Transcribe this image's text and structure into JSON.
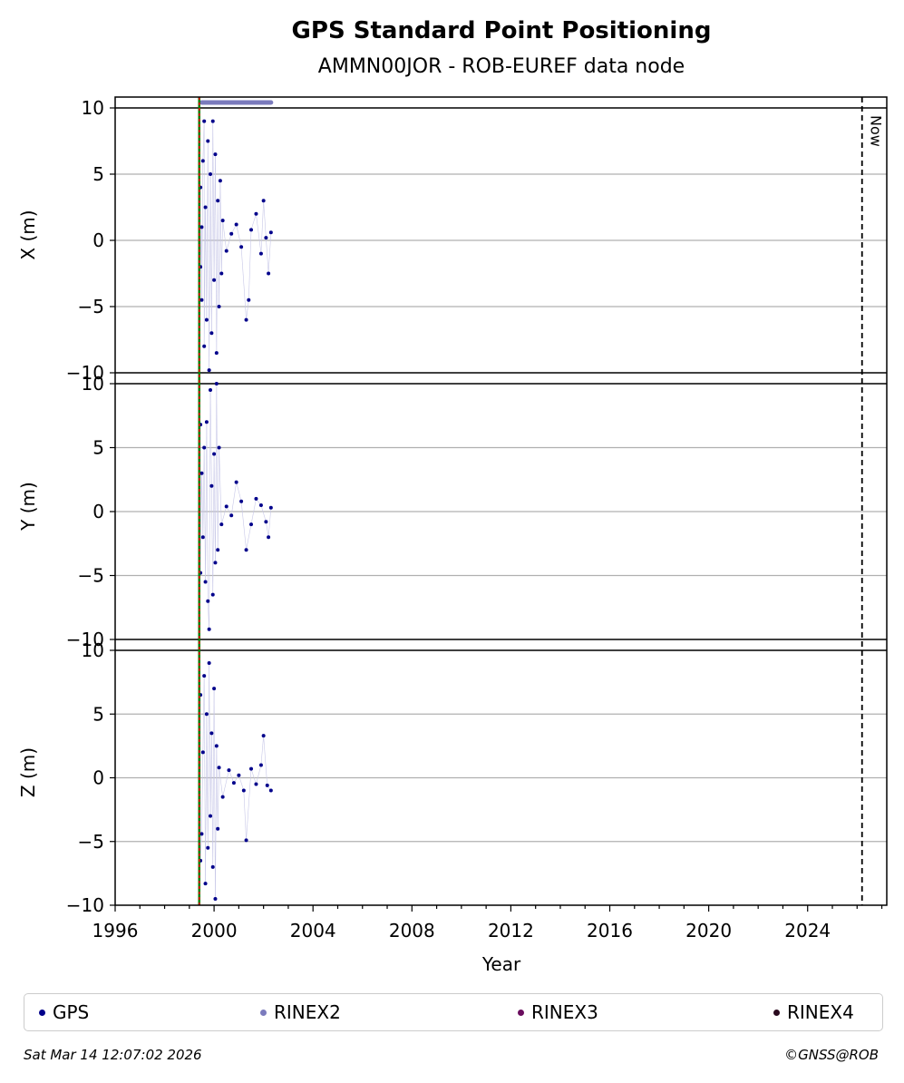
{
  "chart_data": {
    "type": "scatter",
    "title": "GPS Standard Point Positioning",
    "subtitle": "AMMN00JOR - ROB-EUREF data node",
    "xlabel": "Year",
    "xlim": [
      1996,
      2027.2
    ],
    "xticks": [
      "1996",
      "2000",
      "2004",
      "2008",
      "2012",
      "2016",
      "2020",
      "2024"
    ],
    "now_label": "Now",
    "now_x": 2026.2,
    "station_start_x": 1999.4,
    "grid": "horizontal",
    "legend_location": "bottom",
    "panels": [
      {
        "ylabel": "X (m)",
        "ylim": [
          -10,
          10
        ],
        "yticks": [
          "10",
          "5",
          "0",
          "−5",
          "−10"
        ]
      },
      {
        "ylabel": "Y (m)",
        "ylim": [
          -10,
          10
        ],
        "yticks": [
          "10",
          "5",
          "0",
          "−5",
          "−10"
        ]
      },
      {
        "ylabel": "Z (m)",
        "ylim": [
          -10,
          10
        ],
        "yticks": [
          "10",
          "5",
          "0",
          "−5",
          "−10"
        ]
      }
    ],
    "series": [
      {
        "name": "GPS",
        "color": "#00008b",
        "marker": "dot"
      },
      {
        "name": "RINEX2",
        "color": "#7b7bbd",
        "marker": "dot"
      },
      {
        "name": "RINEX3",
        "color": "#6a0d5e",
        "marker": "dot"
      },
      {
        "name": "RINEX4",
        "color": "#2a0a1e",
        "marker": "dot"
      }
    ],
    "rinex2_span": [
      1999.5,
      2002.3
    ],
    "gps_samples": {
      "x": [
        [
          1999.45,
          4
        ],
        [
          1999.45,
          -2
        ],
        [
          1999.5,
          1
        ],
        [
          1999.5,
          -4.5
        ],
        [
          1999.55,
          6
        ],
        [
          1999.6,
          9
        ],
        [
          1999.6,
          -8
        ],
        [
          1999.65,
          2.5
        ],
        [
          1999.7,
          -6
        ],
        [
          1999.75,
          7.5
        ],
        [
          1999.8,
          -9.8
        ],
        [
          1999.85,
          5
        ],
        [
          1999.9,
          -7
        ],
        [
          1999.95,
          9
        ],
        [
          2000.0,
          -3
        ],
        [
          2000.05,
          6.5
        ],
        [
          2000.1,
          -8.5
        ],
        [
          2000.15,
          3
        ],
        [
          2000.2,
          -5
        ],
        [
          2000.25,
          4.5
        ],
        [
          2000.3,
          -2.5
        ],
        [
          2000.35,
          1.5
        ],
        [
          2000.5,
          -0.8
        ],
        [
          2000.7,
          0.5
        ],
        [
          2000.9,
          1.2
        ],
        [
          2001.1,
          -0.5
        ],
        [
          2001.3,
          -6
        ],
        [
          2001.4,
          -4.5
        ],
        [
          2001.5,
          0.8
        ],
        [
          2001.7,
          2
        ],
        [
          2001.9,
          -1
        ],
        [
          2002.0,
          3
        ],
        [
          2002.1,
          0.2
        ],
        [
          2002.2,
          -2.5
        ],
        [
          2002.3,
          0.6
        ]
      ],
      "y": [
        [
          1999.45,
          6.8
        ],
        [
          1999.45,
          -4.8
        ],
        [
          1999.5,
          3
        ],
        [
          1999.55,
          -2
        ],
        [
          1999.6,
          5
        ],
        [
          1999.65,
          -5.5
        ],
        [
          1999.7,
          7
        ],
        [
          1999.75,
          -7
        ],
        [
          1999.8,
          -9.2
        ],
        [
          1999.85,
          9.5
        ],
        [
          1999.9,
          2
        ],
        [
          1999.95,
          -6.5
        ],
        [
          2000.0,
          4.5
        ],
        [
          2000.05,
          -4
        ],
        [
          2000.1,
          10
        ],
        [
          2000.15,
          -3
        ],
        [
          2000.2,
          5
        ],
        [
          2000.3,
          -1
        ],
        [
          2000.5,
          0.4
        ],
        [
          2000.7,
          -0.3
        ],
        [
          2000.9,
          2.3
        ],
        [
          2001.1,
          0.8
        ],
        [
          2001.3,
          -3
        ],
        [
          2001.5,
          -1
        ],
        [
          2001.7,
          1
        ],
        [
          2001.9,
          0.5
        ],
        [
          2002.1,
          -0.8
        ],
        [
          2002.2,
          -2
        ],
        [
          2002.3,
          0.3
        ]
      ],
      "z": [
        [
          1999.45,
          6.5
        ],
        [
          1999.45,
          -6.5
        ],
        [
          1999.5,
          -4.4
        ],
        [
          1999.55,
          2
        ],
        [
          1999.6,
          8
        ],
        [
          1999.65,
          -8.3
        ],
        [
          1999.7,
          5
        ],
        [
          1999.75,
          -5.5
        ],
        [
          1999.8,
          9
        ],
        [
          1999.85,
          -3
        ],
        [
          1999.9,
          3.5
        ],
        [
          1999.95,
          -7
        ],
        [
          2000.0,
          7
        ],
        [
          2000.05,
          -9.5
        ],
        [
          2000.1,
          2.5
        ],
        [
          2000.15,
          -4
        ],
        [
          2000.2,
          0.8
        ],
        [
          2000.35,
          -1.5
        ],
        [
          2000.6,
          0.6
        ],
        [
          2000.8,
          -0.4
        ],
        [
          2001.0,
          0.2
        ],
        [
          2001.2,
          -1
        ],
        [
          2001.3,
          -4.9
        ],
        [
          2001.5,
          0.7
        ],
        [
          2001.7,
          -0.5
        ],
        [
          2001.9,
          1
        ],
        [
          2002.0,
          3.3
        ],
        [
          2002.15,
          -0.6
        ],
        [
          2002.3,
          -1
        ]
      ]
    }
  },
  "legend": {
    "gps": "GPS",
    "rinex2": "RINEX2",
    "rinex3": "RINEX3",
    "rinex4": "RINEX4"
  },
  "footer": {
    "timestamp": "Sat Mar 14 12:07:02 2026",
    "credit": "©GNSS@ROB"
  }
}
